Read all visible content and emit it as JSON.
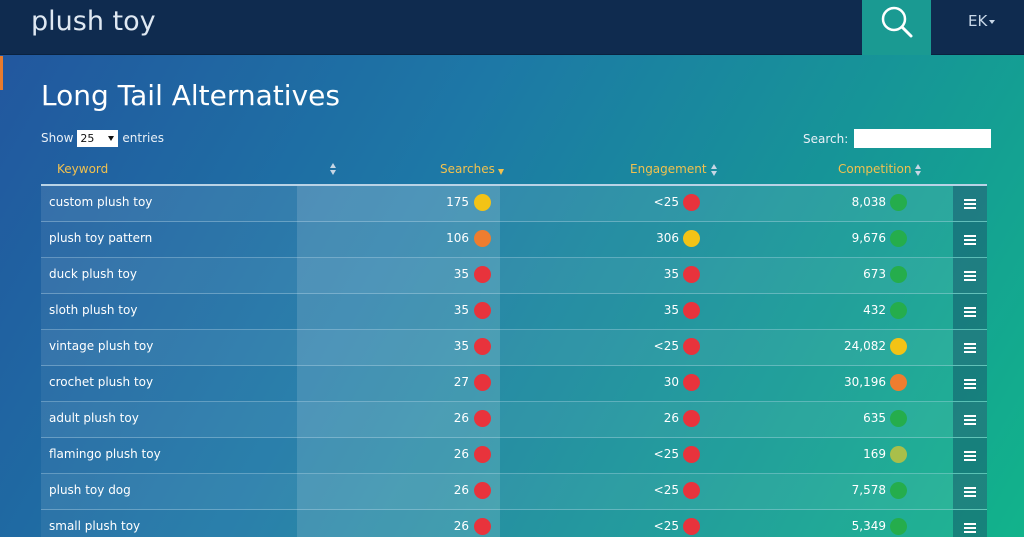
{
  "header": {
    "query": "plush toy",
    "user_initials": "EK"
  },
  "page": {
    "title": "Long Tail Alternatives"
  },
  "controls": {
    "show_label": "Show",
    "entries_value": "25",
    "entries_label": "entries",
    "search_label": "Search:"
  },
  "columns": {
    "keyword": "Keyword",
    "searches": "Searches",
    "engagement": "Engagement",
    "competition": "Competition"
  },
  "colors": {
    "red": "#e8333c",
    "orange": "#ee7d2f",
    "yellow": "#f3c316",
    "green": "#25ad4c",
    "lightgreen": "#a9bf4a"
  },
  "rows": [
    {
      "keyword": "custom plush toy",
      "searches": "175",
      "searches_level": "yellow",
      "engagement": "<25",
      "engagement_level": "red",
      "competition": "8,038",
      "competition_level": "green"
    },
    {
      "keyword": "plush toy pattern",
      "searches": "106",
      "searches_level": "orange",
      "engagement": "306",
      "engagement_level": "yellow",
      "competition": "9,676",
      "competition_level": "green"
    },
    {
      "keyword": "duck plush toy",
      "searches": "35",
      "searches_level": "red",
      "engagement": "35",
      "engagement_level": "red",
      "competition": "673",
      "competition_level": "green"
    },
    {
      "keyword": "sloth plush toy",
      "searches": "35",
      "searches_level": "red",
      "engagement": "35",
      "engagement_level": "red",
      "competition": "432",
      "competition_level": "green"
    },
    {
      "keyword": "vintage plush toy",
      "searches": "35",
      "searches_level": "red",
      "engagement": "<25",
      "engagement_level": "red",
      "competition": "24,082",
      "competition_level": "yellow"
    },
    {
      "keyword": "crochet plush toy",
      "searches": "27",
      "searches_level": "red",
      "engagement": "30",
      "engagement_level": "red",
      "competition": "30,196",
      "competition_level": "orange"
    },
    {
      "keyword": "adult plush toy",
      "searches": "26",
      "searches_level": "red",
      "engagement": "26",
      "engagement_level": "red",
      "competition": "635",
      "competition_level": "green"
    },
    {
      "keyword": "flamingo plush toy",
      "searches": "26",
      "searches_level": "red",
      "engagement": "<25",
      "engagement_level": "red",
      "competition": "169",
      "competition_level": "lightgreen"
    },
    {
      "keyword": "plush toy dog",
      "searches": "26",
      "searches_level": "red",
      "engagement": "<25",
      "engagement_level": "red",
      "competition": "7,578",
      "competition_level": "green"
    },
    {
      "keyword": "small plush toy",
      "searches": "26",
      "searches_level": "red",
      "engagement": "<25",
      "engagement_level": "red",
      "competition": "5,349",
      "competition_level": "green"
    }
  ]
}
